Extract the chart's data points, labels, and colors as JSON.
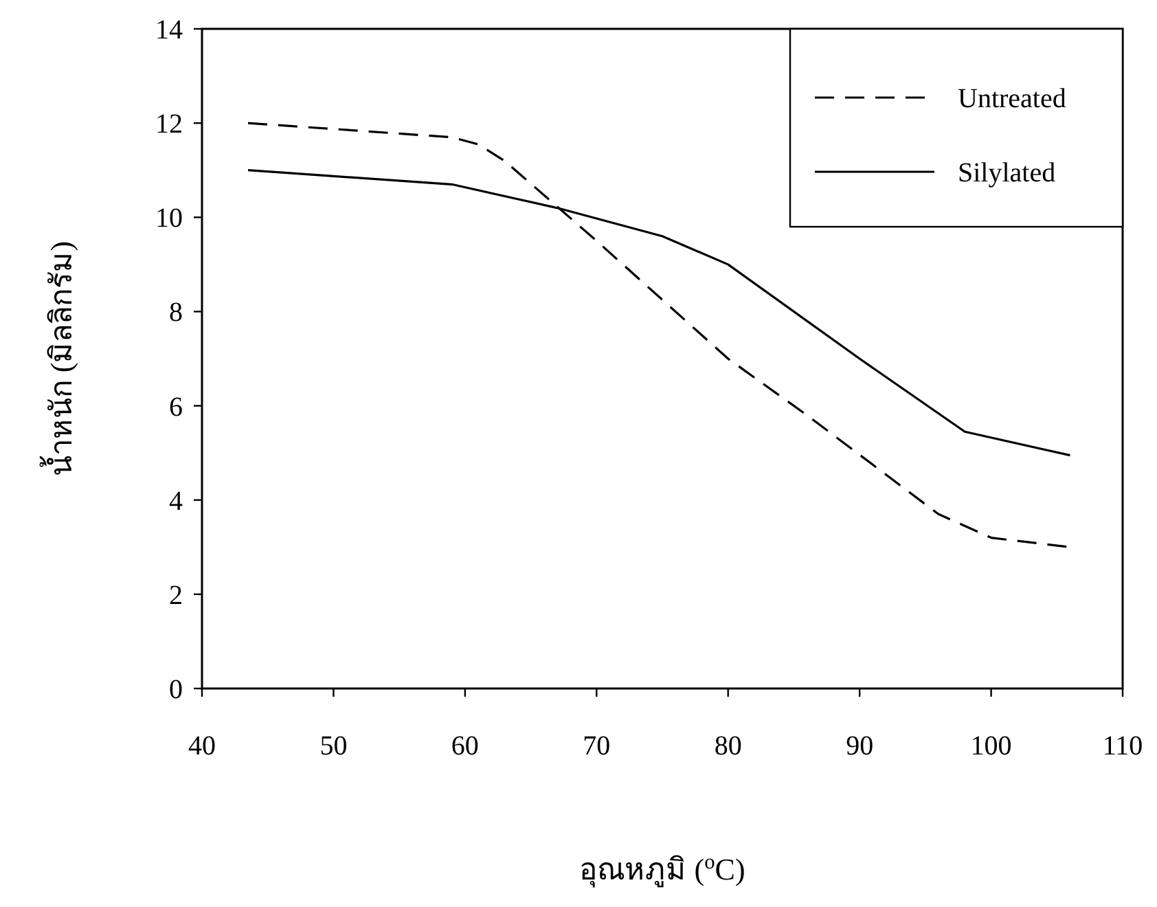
{
  "chart_data": {
    "type": "line",
    "xlabel": "อุณหภูมิ ($^{o}$C)",
    "ylabel": "น้ำหนัก (มิลลิกรัม)",
    "xlim": [
      40,
      110
    ],
    "xticks": [
      40,
      50,
      60,
      70,
      80,
      90,
      100,
      110
    ],
    "ylim": [
      0,
      14
    ],
    "yticks": [
      0,
      2,
      4,
      6,
      8,
      10,
      12,
      14
    ],
    "grid": false,
    "legend": "top right",
    "marker": "none",
    "series": [
      {
        "name": "Untreated",
        "color": "#000000",
        "line_style": "dashed",
        "x": [
          43.5,
          59,
          61,
          63,
          70,
          80,
          86,
          96,
          100,
          106
        ],
        "values": [
          12,
          11.7,
          11.55,
          11.2,
          9.5,
          7,
          5.8,
          3.7,
          3.2,
          3.0
        ]
      },
      {
        "name": "Silylated",
        "color": "#000000",
        "line_style": "solid",
        "x": [
          43.5,
          59,
          67,
          75,
          80,
          90,
          98,
          106
        ],
        "values": [
          11,
          10.7,
          10.2,
          9.6,
          9.0,
          7,
          5.45,
          4.95
        ]
      }
    ]
  }
}
